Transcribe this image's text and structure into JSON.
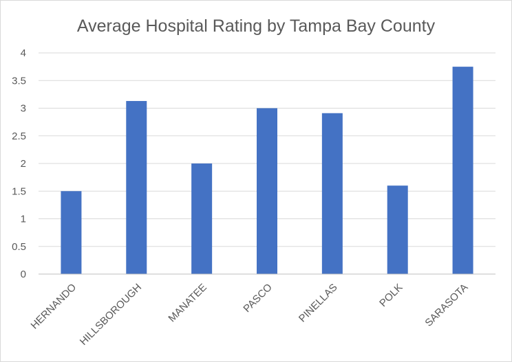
{
  "chart_data": {
    "type": "bar",
    "title": "Average Hospital Rating by Tampa Bay County",
    "xlabel": "",
    "ylabel": "",
    "categories": [
      "HERNANDO",
      "HILLSBOROUGH",
      "MANATEE",
      "PASCO",
      "PINELLAS",
      "POLK",
      "SARASOTA"
    ],
    "values": [
      1.5,
      3.13,
      2.0,
      3.0,
      2.91,
      1.6,
      3.75
    ],
    "ylim": [
      0,
      4
    ],
    "yticks": [
      "0",
      "0.5",
      "1",
      "1.5",
      "2",
      "2.5",
      "3",
      "3.5",
      "4"
    ],
    "grid": true,
    "legend": "none",
    "bar_color": "#4472c4"
  }
}
